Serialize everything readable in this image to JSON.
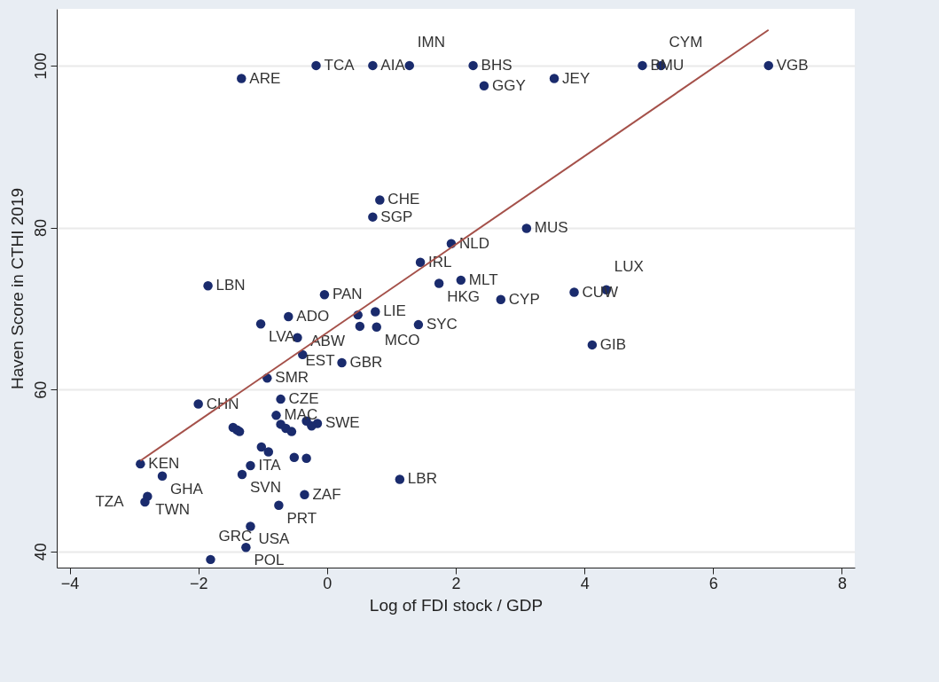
{
  "chart_data": {
    "type": "scatter",
    "xlabel": "Log of FDI stock / GDP",
    "ylabel": "Haven Score in CTHI 2019",
    "xlim": [
      -4.2,
      8.2
    ],
    "xticks": [
      -4,
      -2,
      0,
      2,
      4,
      6,
      8
    ],
    "ylim": [
      38,
      107
    ],
    "yticks": [
      40,
      60,
      80,
      100
    ],
    "grid": "y",
    "marker": "circle",
    "series": [
      {
        "color": "#1a2b6d",
        "x": [
          -0.17,
          0.71,
          1.28,
          2.27,
          4.9,
          5.19,
          6.86,
          -1.33,
          2.44,
          3.53,
          0.82,
          0.71,
          3.1,
          1.93,
          1.45,
          -1.85,
          2.08,
          1.74,
          -0.04,
          2.7,
          3.84,
          4.34,
          -0.6,
          -1.03,
          0.48,
          0.75,
          0.51,
          0.77,
          1.42,
          -0.46,
          -0.38,
          0.23,
          4.12,
          -0.93,
          -0.72,
          -2.0,
          -1.46,
          -1.4,
          -1.36,
          -0.79,
          -0.72,
          -0.64,
          -0.55,
          -0.32,
          -0.15,
          -0.24,
          -1.02,
          -0.91,
          -0.51,
          -0.32,
          -1.19,
          -1.32,
          -2.9,
          -2.56,
          -2.79,
          -2.83,
          -0.35,
          -0.75,
          -1.19,
          -1.26,
          -1.81,
          1.13
        ],
        "values": [
          100,
          100,
          100,
          100,
          100,
          100,
          100,
          98.4,
          97.5,
          98.4,
          83.4,
          81.3,
          79.9,
          78.0,
          75.7,
          72.8,
          73.5,
          73.1,
          71.7,
          71.1,
          72.0,
          72.3,
          69.0,
          68.1,
          69.2,
          69.6,
          67.8,
          67.7,
          68.0,
          66.4,
          64.3,
          63.3,
          65.5,
          61.4,
          58.8,
          58.2,
          55.3,
          55.0,
          54.8,
          56.8,
          55.7,
          55.2,
          54.8,
          56.1,
          55.8,
          55.5,
          52.9,
          52.3,
          51.6,
          51.5,
          50.6,
          49.5,
          50.8,
          49.3,
          46.8,
          46.1,
          47.0,
          45.7,
          43.1,
          40.5,
          39.0,
          48.9
        ],
        "value_labels": [
          "TCA",
          "AIA",
          "IMN",
          "BHS",
          "BMU",
          "CYM",
          "VGB",
          "ARE",
          "GGY",
          "JEY",
          "CHE",
          "SGP",
          "MUS",
          "NLD",
          "IRL",
          "LBN",
          "MLT",
          "HKG",
          "PAN",
          "CYP",
          "CUW",
          "LUX",
          "ADO",
          "LVA",
          null,
          "LIE",
          null,
          "MCO",
          "SYC",
          "EST",
          "ABW",
          "GBR",
          "GIB",
          "SMR",
          "CZE",
          "CHN",
          null,
          null,
          null,
          "MAC",
          null,
          null,
          null,
          null,
          "SWE",
          null,
          null,
          null,
          null,
          null,
          "ITA",
          "SVN",
          "KEN",
          "GHA",
          "TWN",
          "TZA",
          "ZAF",
          "PRT",
          "USA",
          "POL",
          "GRC",
          "LBR"
        ]
      },
      {
        "type": "line",
        "color": "#a5514a",
        "marker": "none",
        "x": [
          -2.9,
          6.86
        ],
        "values": [
          51.2,
          104.4
        ]
      }
    ]
  }
}
